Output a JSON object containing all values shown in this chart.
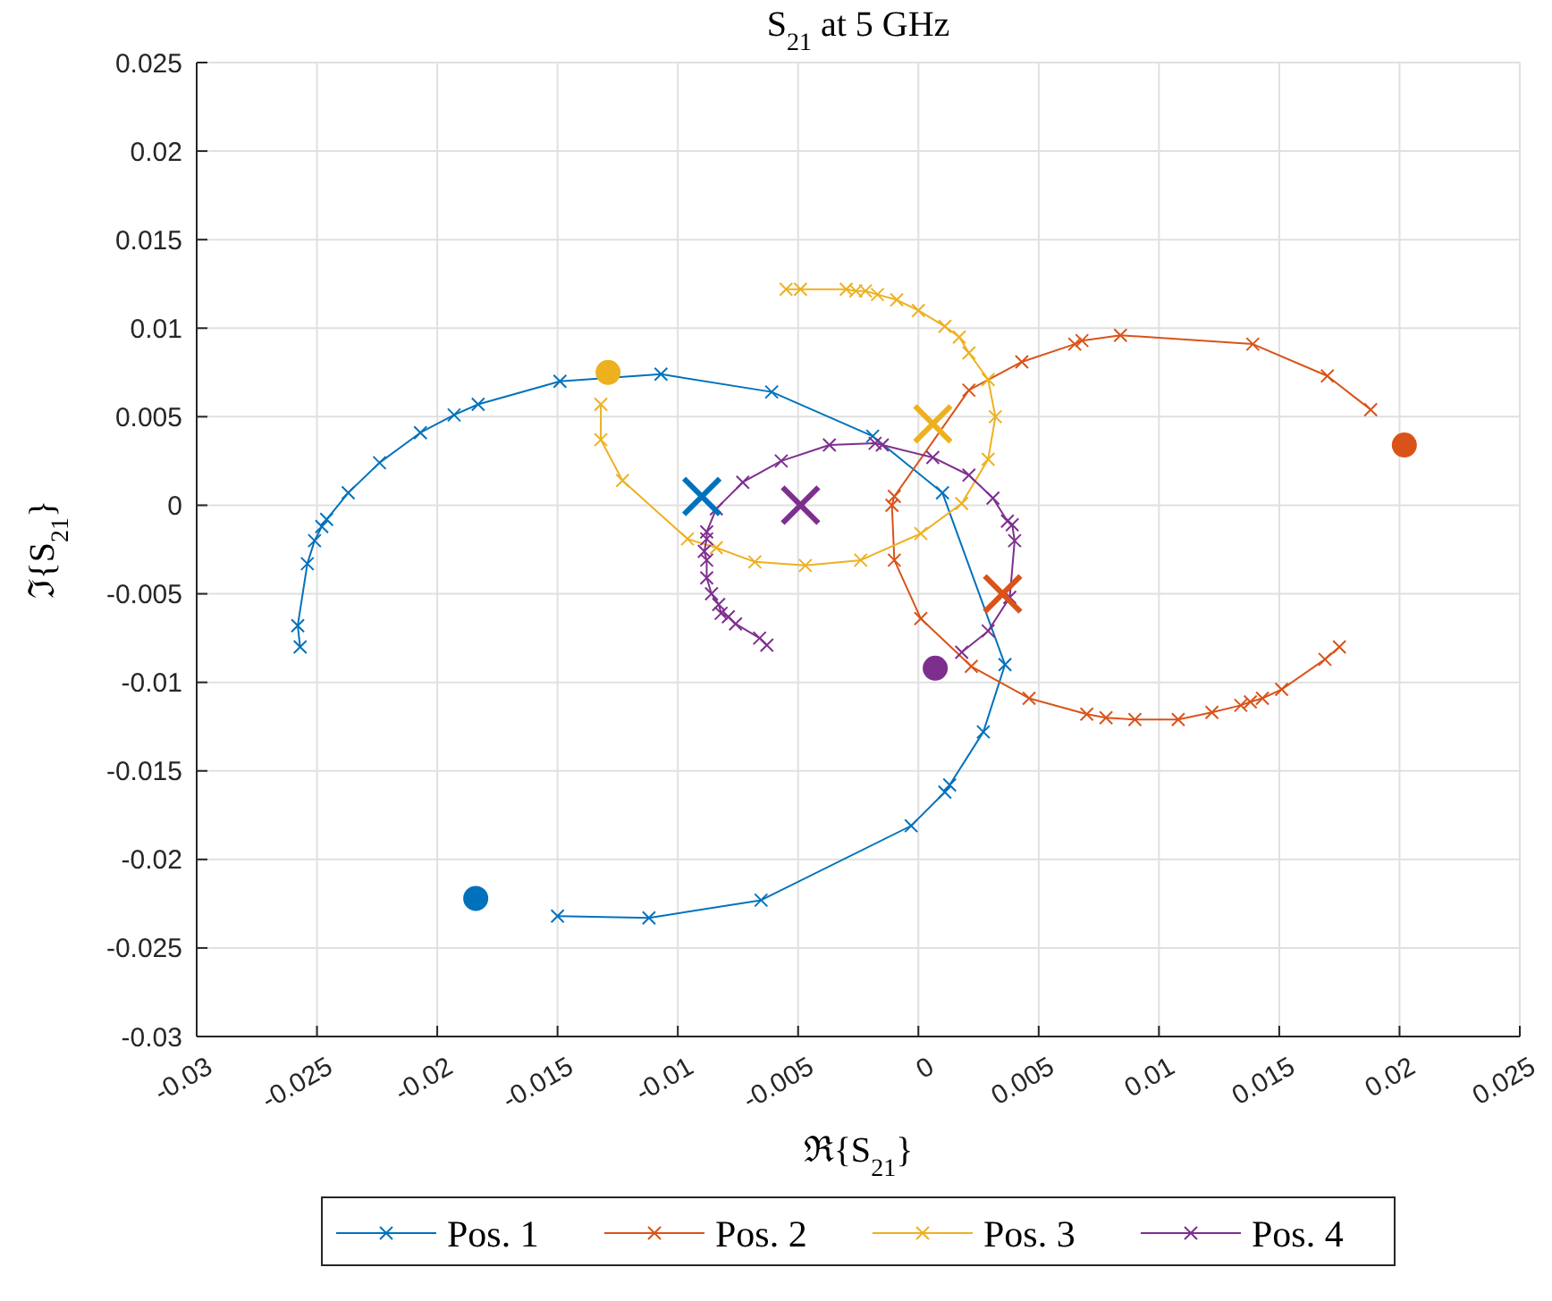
{
  "chart_data": {
    "type": "line",
    "title": "S$_{21}$ at 5 GHz",
    "xlabel": "ℜ{S$_{21}$}",
    "ylabel": "ℑ{S$_{21}$}",
    "xlim": [
      -0.03,
      0.025
    ],
    "xticks": [
      -0.03,
      -0.025,
      -0.02,
      -0.015,
      -0.01,
      -0.005,
      0,
      0.005,
      0.01,
      0.015,
      0.02,
      0.025
    ],
    "ylim": [
      -0.03,
      0.025
    ],
    "yticks": [
      -0.03,
      -0.025,
      -0.02,
      -0.015,
      -0.01,
      -0.005,
      0,
      0.005,
      0.01,
      0.015,
      0.02,
      0.025
    ],
    "grid": true,
    "legend": "bottom",
    "marker": "cross",
    "line_style": "solid",
    "series": [
      {
        "name": "Pos. 1",
        "color": "#0072bd",
        "x": [
          -0.015,
          -0.0112,
          -0.00654,
          -0.0003,
          0.0011,
          0.0013,
          0.0027,
          0.0036,
          0.001,
          -0.0019,
          -0.0061,
          -0.0107,
          -0.0149,
          -0.0183,
          -0.0193,
          -0.0207,
          -0.0224,
          -0.0237,
          -0.0246,
          -0.0248,
          -0.0251,
          -0.0254,
          -0.0258,
          -0.0257
        ],
        "values": [
          -0.0232,
          -0.0233,
          -0.0223,
          -0.0181,
          -0.0162,
          -0.0158,
          -0.0128,
          -0.009,
          0.0007,
          0.0039,
          0.0064,
          0.0074,
          0.007,
          0.0057,
          0.0051,
          0.0041,
          0.0024,
          0.0007,
          -0.0008,
          -0.0012,
          -0.002,
          -0.0033,
          -0.0068,
          -0.008
        ]
      },
      {
        "name": "Pos. 2",
        "color": "#d95319",
        "x": [
          0.0188,
          0.017,
          0.0139,
          0.0084,
          0.0068,
          0.0065,
          0.0043,
          0.0021,
          -0.001,
          -0.0011,
          -0.001,
          0.0001,
          0.0022,
          0.0046,
          0.007,
          0.0078,
          0.009,
          0.0108,
          0.0122,
          0.0134,
          0.0138,
          0.0143,
          0.0151,
          0.0169,
          0.0175
        ],
        "values": [
          0.0054,
          0.0073,
          0.0091,
          0.0096,
          0.0093,
          0.0091,
          0.0081,
          0.0065,
          0.0005,
          0.0,
          -0.0031,
          -0.0064,
          -0.0091,
          -0.0109,
          -0.0118,
          -0.012,
          -0.0121,
          -0.0121,
          -0.0117,
          -0.0113,
          -0.0111,
          -0.0109,
          -0.0104,
          -0.0087,
          -0.008
        ]
      },
      {
        "name": "Pos. 3",
        "color": "#edb120",
        "x": [
          -0.0132,
          -0.0132,
          -0.0123,
          -0.0096,
          -0.0084,
          -0.0068,
          -0.0047,
          -0.0024,
          0.0001,
          0.0018,
          0.0029,
          0.0032,
          0.0029,
          0.0021,
          0.0017,
          0.0011,
          0.0,
          -0.0009,
          -0.0017,
          -0.0022,
          -0.0026,
          -0.003,
          -0.0049,
          -0.0055
        ],
        "values": [
          0.0057,
          0.0037,
          0.0014,
          -0.0019,
          -0.0024,
          -0.0032,
          -0.0034,
          -0.0031,
          -0.0016,
          0.0001,
          0.0026,
          0.005,
          0.0071,
          0.0086,
          0.0095,
          0.0101,
          0.011,
          0.0116,
          0.0119,
          0.0121,
          0.0121,
          0.0122,
          0.0122,
          0.0122
        ]
      },
      {
        "name": "Pos. 4",
        "color": "#7e2f8e",
        "x": [
          0.0018,
          0.0029,
          0.0038,
          0.004,
          0.0039,
          0.0037,
          0.0031,
          0.0021,
          0.0006,
          -0.0015,
          -0.0018,
          -0.0037,
          -0.0057,
          -0.0073,
          -0.0084,
          -0.0088,
          -0.0088,
          -0.0089,
          -0.0088,
          -0.0088,
          -0.0086,
          -0.0083,
          -0.0082,
          -0.0079,
          -0.0076,
          -0.0066,
          -0.0063
        ],
        "values": [
          -0.0083,
          -0.0071,
          -0.0052,
          -0.002,
          -0.0011,
          -0.0009,
          0.0004,
          0.0017,
          0.0027,
          0.0034,
          0.0035,
          0.0034,
          0.0025,
          0.0013,
          -0.0002,
          -0.0015,
          -0.0019,
          -0.0026,
          -0.0031,
          -0.0041,
          -0.005,
          -0.0056,
          -0.0061,
          -0.0063,
          -0.0067,
          -0.0075,
          -0.0079
        ]
      },
      {
        "type": "scatter",
        "marker": "circle",
        "color": "#0072bd",
        "x": [
          -0.0184
        ],
        "values": [
          -0.0222
        ]
      },
      {
        "type": "scatter",
        "marker": "circle",
        "color": "#d95319",
        "x": [
          0.0202
        ],
        "values": [
          0.0034
        ]
      },
      {
        "type": "scatter",
        "marker": "circle",
        "color": "#edb120",
        "x": [
          -0.0129
        ],
        "values": [
          0.0075
        ]
      },
      {
        "type": "scatter",
        "marker": "circle",
        "color": "#7e2f8e",
        "x": [
          0.0007
        ],
        "values": [
          -0.0092
        ]
      },
      {
        "type": "scatter",
        "marker": "cross",
        "color": "#0072bd",
        "x": [
          -0.009
        ],
        "values": [
          0.0005
        ]
      },
      {
        "type": "scatter",
        "marker": "cross",
        "color": "#d95319",
        "x": [
          0.0035
        ],
        "values": [
          -0.005
        ]
      },
      {
        "type": "scatter",
        "marker": "cross",
        "color": "#edb120",
        "x": [
          0.0006
        ],
        "values": [
          0.0046
        ]
      },
      {
        "type": "scatter",
        "marker": "cross",
        "color": "#7e2f8e",
        "x": [
          -0.0049
        ],
        "values": [
          0.0
        ]
      }
    ]
  }
}
